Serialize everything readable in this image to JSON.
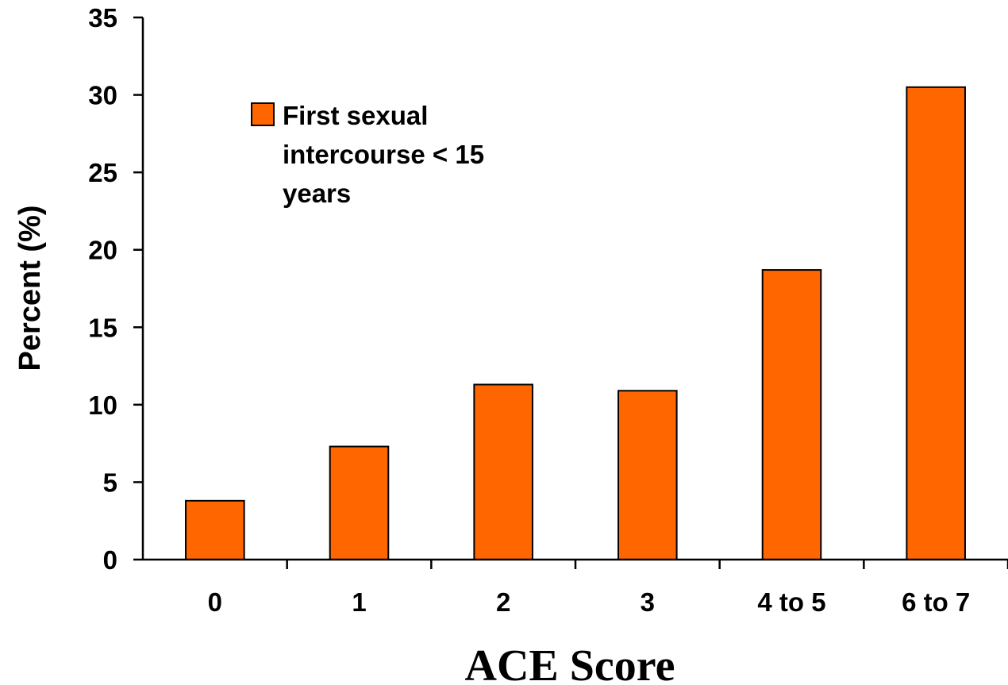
{
  "chart_data": {
    "type": "bar",
    "categories": [
      "0",
      "1",
      "2",
      "3",
      "4 to 5",
      "6 to 7"
    ],
    "series": [
      {
        "name": "First sexual intercourse < 15 years",
        "values": [
          3.8,
          7.3,
          11.3,
          10.9,
          18.7,
          30.5
        ]
      }
    ],
    "legend_lines": [
      "First sexual",
      "intercourse < 15",
      "years"
    ],
    "xlabel": "ACE Score",
    "ylabel": "Percent (%)",
    "ylim": [
      0,
      35
    ],
    "yticks": [
      0,
      5,
      10,
      15,
      20,
      25,
      30,
      35
    ],
    "grid": false,
    "legend_position": "top-left",
    "colors": {
      "bar_fill": "#ff6600",
      "bar_stroke": "#000000"
    }
  }
}
